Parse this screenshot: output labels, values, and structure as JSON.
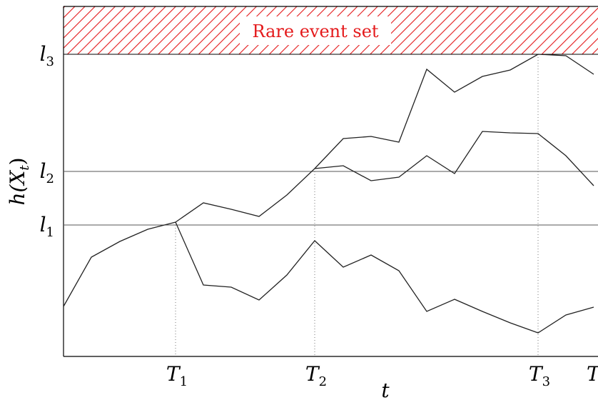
{
  "diagram": {
    "rare_event_label": "Rare event set",
    "y_axis_label": {
      "main": "h(X",
      "sub": "t",
      "close": ")"
    },
    "x_axis_label": "t",
    "levels": [
      {
        "main": "l",
        "sub": "1"
      },
      {
        "main": "l",
        "sub": "2"
      },
      {
        "main": "l",
        "sub": "3"
      }
    ],
    "times": [
      {
        "main": "T",
        "sub": "1"
      },
      {
        "main": "T",
        "sub": "2"
      },
      {
        "main": "T",
        "sub": "3"
      },
      {
        "main": "T",
        "sub": ""
      }
    ],
    "colors": {
      "rare_event": "#e41a1c",
      "path": "#222222",
      "axis": "#000000",
      "level_line": "#555555"
    }
  }
}
